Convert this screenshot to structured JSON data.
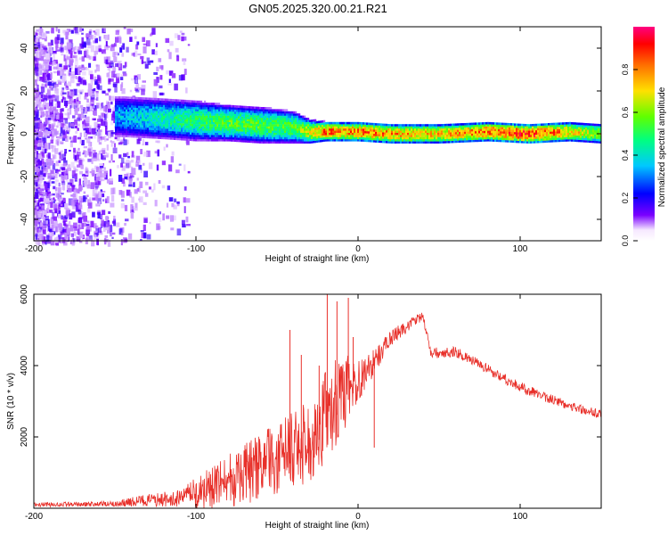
{
  "title": "GN05.2025.320.00.21.R21",
  "colors": {
    "snr_line": "#e8302a",
    "spectro_low": "#c9b8f4",
    "spectro_mid": "#6a1cf0",
    "spectro_peak": "#e01020"
  },
  "chart_data": [
    {
      "type": "heatmap",
      "name": "spectrogram",
      "title": "GN05.2025.320.00.21.R21",
      "xlabel": "Height of straight line (km)",
      "ylabel": "Frequency (Hz)",
      "xlim": [
        -200,
        150
      ],
      "ylim": [
        -50,
        50
      ],
      "xticks": [
        -200,
        -100,
        0,
        100
      ],
      "yticks": [
        -40,
        -20,
        0,
        20,
        40
      ],
      "colorbar": {
        "label": "Normalized spectral amplitude",
        "range": [
          0,
          1
        ],
        "ticks": [
          "0.0",
          "0.2",
          "0.4",
          "0.6",
          "0.8"
        ],
        "colormap": [
          "#ffffff",
          "#7a00ff",
          "#0000ff",
          "#00c8ff",
          "#00ff80",
          "#60ff00",
          "#ffe000",
          "#ff8000",
          "#ff0000",
          "#ff0080"
        ]
      },
      "ridge": [
        {
          "x": -145,
          "center_hz": 8,
          "width_hz": 10,
          "amp": 0.35
        },
        {
          "x": -120,
          "center_hz": 7,
          "width_hz": 10,
          "amp": 0.45
        },
        {
          "x": -100,
          "center_hz": 6,
          "width_hz": 10,
          "amp": 0.5
        },
        {
          "x": -80,
          "center_hz": 5,
          "width_hz": 9,
          "amp": 0.55
        },
        {
          "x": -60,
          "center_hz": 4,
          "width_hz": 9,
          "amp": 0.55
        },
        {
          "x": -40,
          "center_hz": 3,
          "width_hz": 8,
          "amp": 0.55
        },
        {
          "x": -30,
          "center_hz": 1,
          "width_hz": 6,
          "amp": 0.7
        },
        {
          "x": -20,
          "center_hz": 1,
          "width_hz": 5,
          "amp": 0.85
        },
        {
          "x": -10,
          "center_hz": 1,
          "width_hz": 5,
          "amp": 0.8
        },
        {
          "x": 0,
          "center_hz": 1,
          "width_hz": 5,
          "amp": 0.85
        },
        {
          "x": 20,
          "center_hz": 0,
          "width_hz": 5,
          "amp": 0.8
        },
        {
          "x": 50,
          "center_hz": 0,
          "width_hz": 5,
          "amp": 0.75
        },
        {
          "x": 80,
          "center_hz": 1,
          "width_hz": 5,
          "amp": 0.85
        },
        {
          "x": 105,
          "center_hz": 0,
          "width_hz": 5,
          "amp": 0.95
        },
        {
          "x": 130,
          "center_hz": 1,
          "width_hz": 5,
          "amp": 0.75
        },
        {
          "x": 150,
          "center_hz": 0,
          "width_hz": 5,
          "amp": 0.6
        }
      ]
    },
    {
      "type": "line",
      "name": "snr",
      "xlabel": "Height of straight line (km)",
      "ylabel": "SNR (10 * v/v)",
      "xlim": [
        -200,
        150
      ],
      "ylim": [
        0,
        6000
      ],
      "xticks": [
        -200,
        -100,
        0,
        100
      ],
      "yticks": [
        2000,
        4000,
        6000
      ],
      "envelope": [
        {
          "x": -200,
          "base": 80,
          "spread": 120
        },
        {
          "x": -150,
          "base": 100,
          "spread": 150
        },
        {
          "x": -135,
          "base": 150,
          "spread": 350
        },
        {
          "x": -110,
          "base": 200,
          "spread": 500
        },
        {
          "x": -90,
          "base": 350,
          "spread": 1300
        },
        {
          "x": -70,
          "base": 700,
          "spread": 1700
        },
        {
          "x": -50,
          "base": 1100,
          "spread": 2000
        },
        {
          "x": -30,
          "base": 1500,
          "spread": 2400
        },
        {
          "x": -20,
          "base": 2200,
          "spread": 2600
        },
        {
          "x": -10,
          "base": 2800,
          "spread": 2400
        },
        {
          "x": 0,
          "base": 3400,
          "spread": 1200
        },
        {
          "x": 10,
          "base": 4000,
          "spread": 700
        },
        {
          "x": 20,
          "base": 4700,
          "spread": 450
        },
        {
          "x": 35,
          "base": 5200,
          "spread": 300
        },
        {
          "x": 40,
          "base": 5350,
          "spread": 250
        },
        {
          "x": 45,
          "base": 4300,
          "spread": 300
        },
        {
          "x": 60,
          "base": 4350,
          "spread": 300
        },
        {
          "x": 80,
          "base": 3850,
          "spread": 300
        },
        {
          "x": 100,
          "base": 3350,
          "spread": 300
        },
        {
          "x": 120,
          "base": 3000,
          "spread": 280
        },
        {
          "x": 140,
          "base": 2700,
          "spread": 260
        },
        {
          "x": 150,
          "base": 2600,
          "spread": 250
        }
      ],
      "spikes": [
        {
          "x": -42,
          "y": 5000
        },
        {
          "x": -35,
          "y": 4300
        },
        {
          "x": -24,
          "y": 4000
        },
        {
          "x": -19,
          "y": 6000
        },
        {
          "x": -13,
          "y": 5800
        },
        {
          "x": -6,
          "y": 5900
        },
        {
          "x": -3,
          "y": 4800
        },
        {
          "x": 10,
          "y": 1700
        }
      ]
    }
  ]
}
